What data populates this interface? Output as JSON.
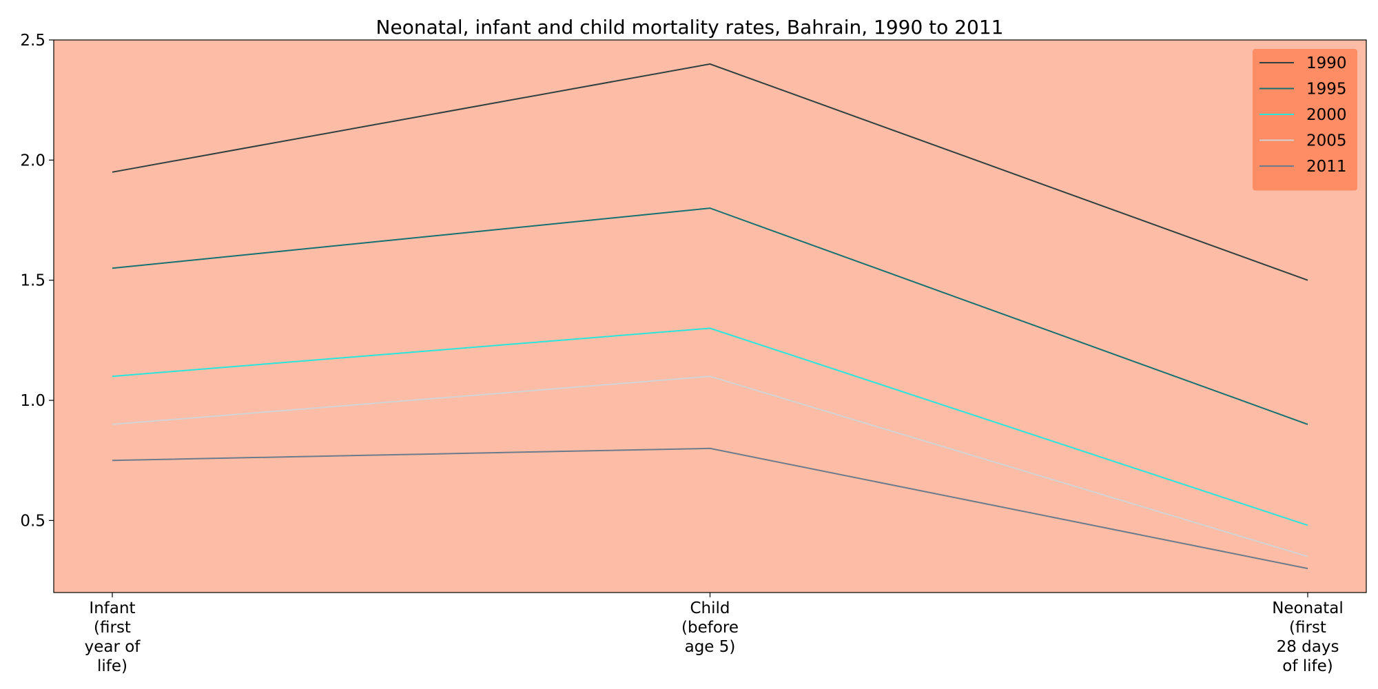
{
  "chart_data": {
    "type": "line",
    "title": "Neonatal, infant and child mortality rates, Bahrain, 1990 to 2011",
    "xlabel": "",
    "ylabel": "",
    "categories": [
      [
        "Infant",
        "(first",
        "year of",
        "life)"
      ],
      [
        "Child",
        "(before",
        "age 5)"
      ],
      [
        "Neonatal",
        "(first",
        "28 days",
        "of life)"
      ]
    ],
    "ylim": [
      0.2,
      2.5
    ],
    "yticks": [
      "0.5",
      "1.0",
      "1.5",
      "2.0",
      "2.5"
    ],
    "grid": false,
    "legend_position": "top-right",
    "colors": {
      "plot_background": "#fdbca6",
      "legend_background": "#fe8c64",
      "axis": "#000000"
    },
    "series": [
      {
        "name": "1990",
        "values": [
          1.95,
          2.4,
          1.5
        ],
        "color": "#2f3f3f"
      },
      {
        "name": "1995",
        "values": [
          1.55,
          1.8,
          0.9
        ],
        "color": "#157070"
      },
      {
        "name": "2000",
        "values": [
          1.1,
          1.3,
          0.48
        ],
        "color": "#27e6dc"
      },
      {
        "name": "2005",
        "values": [
          0.9,
          1.1,
          0.35
        ],
        "color": "#d3d3d3"
      },
      {
        "name": "2011",
        "values": [
          0.75,
          0.8,
          0.3
        ],
        "color": "#6b7b8b"
      }
    ]
  }
}
